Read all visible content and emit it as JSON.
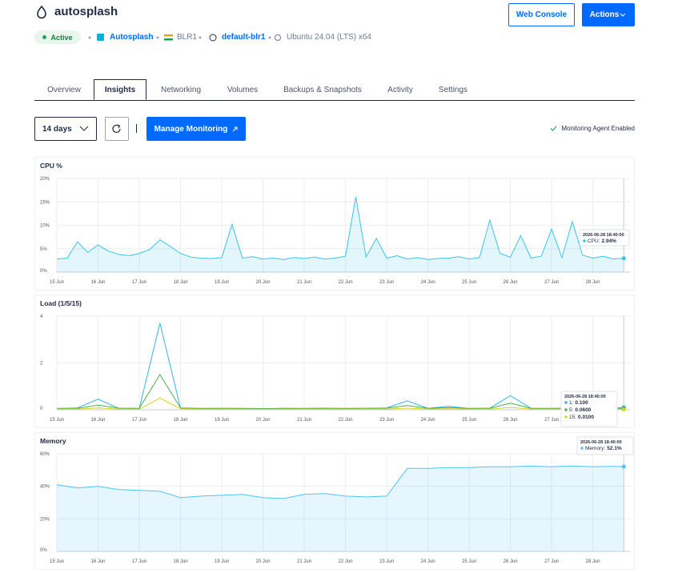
{
  "header": {
    "title": "autosplash",
    "buttons": [
      "Web Console",
      "Actions"
    ],
    "status": "Active",
    "meta": [
      "Autosplash",
      "BLR1",
      "default-blr1",
      "Ubuntu 24.04 (LTS) x64"
    ]
  },
  "tabs": [
    "Overview",
    "Insights",
    "Networking",
    "Volumes",
    "Backups & Snapshots",
    "Activity",
    "Settings"
  ],
  "toolbar": {
    "range": "14 days",
    "button": "Manage Monitoring",
    "agent": "Monitoring Agent Enabled"
  },
  "chart_data": [
    {
      "type": "line",
      "title": "CPU %",
      "area": true,
      "grid": true,
      "x": [
        15,
        15.25,
        15.5,
        15.75,
        16,
        16.25,
        16.5,
        16.75,
        17,
        17.25,
        17.5,
        17.75,
        18,
        18.25,
        18.5,
        18.75,
        19,
        19.25,
        19.5,
        19.75,
        20,
        20.25,
        20.5,
        20.75,
        21,
        21.25,
        21.5,
        21.75,
        22,
        22.25,
        22.5,
        22.75,
        23,
        23.25,
        23.5,
        23.75,
        24,
        24.25,
        24.5,
        24.75,
        25,
        25.25,
        25.5,
        25.75,
        26,
        26.25,
        26.5,
        26.75,
        27,
        27.25,
        27.5,
        27.75,
        28,
        28.25,
        28.5,
        28.75
      ],
      "series": [
        {
          "color": "#3cc3ea",
          "values": [
            2.8,
            3.0,
            6.5,
            4.2,
            5.8,
            4.5,
            3.8,
            3.5,
            4.0,
            4.8,
            6.9,
            5.5,
            4.0,
            3.2,
            3.0,
            2.9,
            3.1,
            10.2,
            3.0,
            3.3,
            2.8,
            3.0,
            2.7,
            3.1,
            2.9,
            3.2,
            2.8,
            3.0,
            3.4,
            16.1,
            3.2,
            7.2,
            3.0,
            3.5,
            2.8,
            3.1,
            2.7,
            2.9,
            3.0,
            3.3,
            2.8,
            3.1,
            11.1,
            4.0,
            3.2,
            7.8,
            3.0,
            3.4,
            9.2,
            3.1,
            10.8,
            3.6,
            3.0,
            3.4,
            2.8,
            2.94
          ]
        }
      ],
      "xlim": [
        15,
        28.9
      ],
      "xticks": [
        {
          "value": 15,
          "label": "15 Jun"
        },
        {
          "value": 16,
          "label": "16 Jun"
        },
        {
          "value": 17,
          "label": "17 Jun"
        },
        {
          "value": 18,
          "label": "18 Jun"
        },
        {
          "value": 19,
          "label": "19 Jun"
        },
        {
          "value": 20,
          "label": "20 Jun"
        },
        {
          "value": 21,
          "label": "21 Jun"
        },
        {
          "value": 22,
          "label": "22 Jun"
        },
        {
          "value": 23,
          "label": "23 Jun"
        },
        {
          "value": 24,
          "label": "24 Jun"
        },
        {
          "value": 25,
          "label": "25 Jun"
        },
        {
          "value": 26,
          "label": "26 Jun"
        },
        {
          "value": 27,
          "label": "27 Jun"
        },
        {
          "value": 28,
          "label": "28 Jun"
        }
      ],
      "ylim": [
        0,
        20
      ],
      "yticks": [
        {
          "value": 0,
          "label": "0%"
        },
        {
          "value": 5,
          "label": "5%"
        },
        {
          "value": 10,
          "label": "10%"
        },
        {
          "value": 15,
          "label": "15%"
        },
        {
          "value": 20,
          "label": "20%"
        }
      ],
      "tooltip": {
        "time": "2026-06-28 18:40:00",
        "items": [
          {
            "label": "CPU:",
            "value": "2.94%"
          }
        ]
      }
    },
    {
      "type": "line",
      "title": "Load (1/5/15)",
      "area": false,
      "grid": true,
      "x": [
        15,
        15.5,
        16,
        16.5,
        17,
        17.5,
        18,
        18.5,
        19,
        19.5,
        20,
        20.5,
        21,
        21.5,
        22,
        22.5,
        23,
        23.5,
        24,
        24.5,
        25,
        25.5,
        26,
        26.5,
        27,
        27.5,
        28,
        28.5,
        28.75
      ],
      "series": [
        {
          "color": "#33b5e5",
          "values": [
            0.05,
            0.08,
            0.45,
            0.06,
            0.05,
            3.7,
            0.07,
            0.05,
            0.06,
            0.05,
            0.04,
            0.06,
            0.05,
            0.07,
            0.05,
            0.06,
            0.08,
            0.38,
            0.06,
            0.15,
            0.05,
            0.07,
            0.6,
            0.06,
            0.05,
            0.08,
            0.06,
            0.07,
            0.1
          ]
        },
        {
          "color": "#4caf50",
          "values": [
            0.06,
            0.06,
            0.2,
            0.07,
            0.06,
            1.5,
            0.08,
            0.06,
            0.06,
            0.06,
            0.05,
            0.06,
            0.06,
            0.06,
            0.06,
            0.06,
            0.07,
            0.18,
            0.06,
            0.09,
            0.06,
            0.06,
            0.28,
            0.06,
            0.06,
            0.07,
            0.06,
            0.06,
            0.06
          ]
        },
        {
          "color": "#d4d41c",
          "values": [
            0.03,
            0.03,
            0.08,
            0.03,
            0.03,
            0.5,
            0.04,
            0.03,
            0.03,
            0.03,
            0.02,
            0.03,
            0.03,
            0.03,
            0.03,
            0.03,
            0.03,
            0.07,
            0.03,
            0.04,
            0.03,
            0.03,
            0.1,
            0.03,
            0.03,
            0.03,
            0.02,
            0.02,
            0.01
          ]
        }
      ],
      "xlim": [
        15,
        28.9
      ],
      "xticks": [
        {
          "value": 15,
          "label": "15 Jun"
        },
        {
          "value": 16,
          "label": "16 Jun"
        },
        {
          "value": 17,
          "label": "17 Jun"
        },
        {
          "value": 18,
          "label": "18 Jun"
        },
        {
          "value": 19,
          "label": "19 Jun"
        },
        {
          "value": 20,
          "label": "20 Jun"
        },
        {
          "value": 21,
          "label": "21 Jun"
        },
        {
          "value": 22,
          "label": "22 Jun"
        },
        {
          "value": 23,
          "label": "23 Jun"
        },
        {
          "value": 24,
          "label": "24 Jun"
        },
        {
          "value": 25,
          "label": "25 Jun"
        },
        {
          "value": 26,
          "label": "26 Jun"
        },
        {
          "value": 27,
          "label": "27 Jun"
        },
        {
          "value": 28,
          "label": "28 Jun"
        }
      ],
      "ylim": [
        0,
        4
      ],
      "yticks": [
        0,
        2,
        4
      ],
      "tooltip": {
        "time": "2026-06-28 18:40:00",
        "items": [
          {
            "label": "1:",
            "value": "0.100"
          },
          {
            "label": "5:",
            "value": "0.0600"
          },
          {
            "label": "15:",
            "value": "0.0100"
          }
        ]
      }
    },
    {
      "type": "line",
      "title": "Memory",
      "area": true,
      "grid": true,
      "x": [
        15,
        15.5,
        16,
        16.5,
        17,
        17.5,
        18,
        18.5,
        19,
        19.5,
        20,
        20.5,
        21,
        21.5,
        22,
        22.5,
        23,
        23.5,
        24,
        24.5,
        25,
        25.5,
        26,
        26.5,
        27,
        27.5,
        28,
        28.5,
        28.75
      ],
      "series": [
        {
          "color": "#4fc3f7",
          "values": [
            41,
            39,
            40,
            38,
            37.5,
            37,
            33,
            34,
            34.5,
            35,
            33,
            32.5,
            35,
            35.5,
            34,
            33.5,
            34,
            51,
            51,
            51.5,
            51.5,
            52,
            52,
            52.5,
            52,
            52.5,
            52,
            52.3,
            52.1
          ]
        }
      ],
      "xlim": [
        15,
        28.9
      ],
      "xticks": [
        {
          "value": 15,
          "label": "15 Jun"
        },
        {
          "value": 16,
          "label": "16 Jun"
        },
        {
          "value": 17,
          "label": "17 Jun"
        },
        {
          "value": 18,
          "label": "18 Jun"
        },
        {
          "value": 19,
          "label": "19 Jun"
        },
        {
          "value": 20,
          "label": "20 Jun"
        },
        {
          "value": 21,
          "label": "21 Jun"
        },
        {
          "value": 22,
          "label": "22 Jun"
        },
        {
          "value": 23,
          "label": "23 Jun"
        },
        {
          "value": 24,
          "label": "24 Jun"
        },
        {
          "value": 25,
          "label": "25 Jun"
        },
        {
          "value": 26,
          "label": "26 Jun"
        },
        {
          "value": 27,
          "label": "27 Jun"
        },
        {
          "value": 28,
          "label": "28 Jun"
        }
      ],
      "ylim": [
        0,
        60
      ],
      "yticks": [
        {
          "value": 0,
          "label": "0%"
        },
        {
          "value": 20,
          "label": "20%"
        },
        {
          "value": 40,
          "label": "40%"
        },
        {
          "value": 60,
          "label": "60%"
        }
      ],
      "tooltip": {
        "time": "2026-06-28 18:40:00",
        "items": [
          {
            "label": "Memory:",
            "value": "52.1%"
          }
        ]
      }
    }
  ]
}
